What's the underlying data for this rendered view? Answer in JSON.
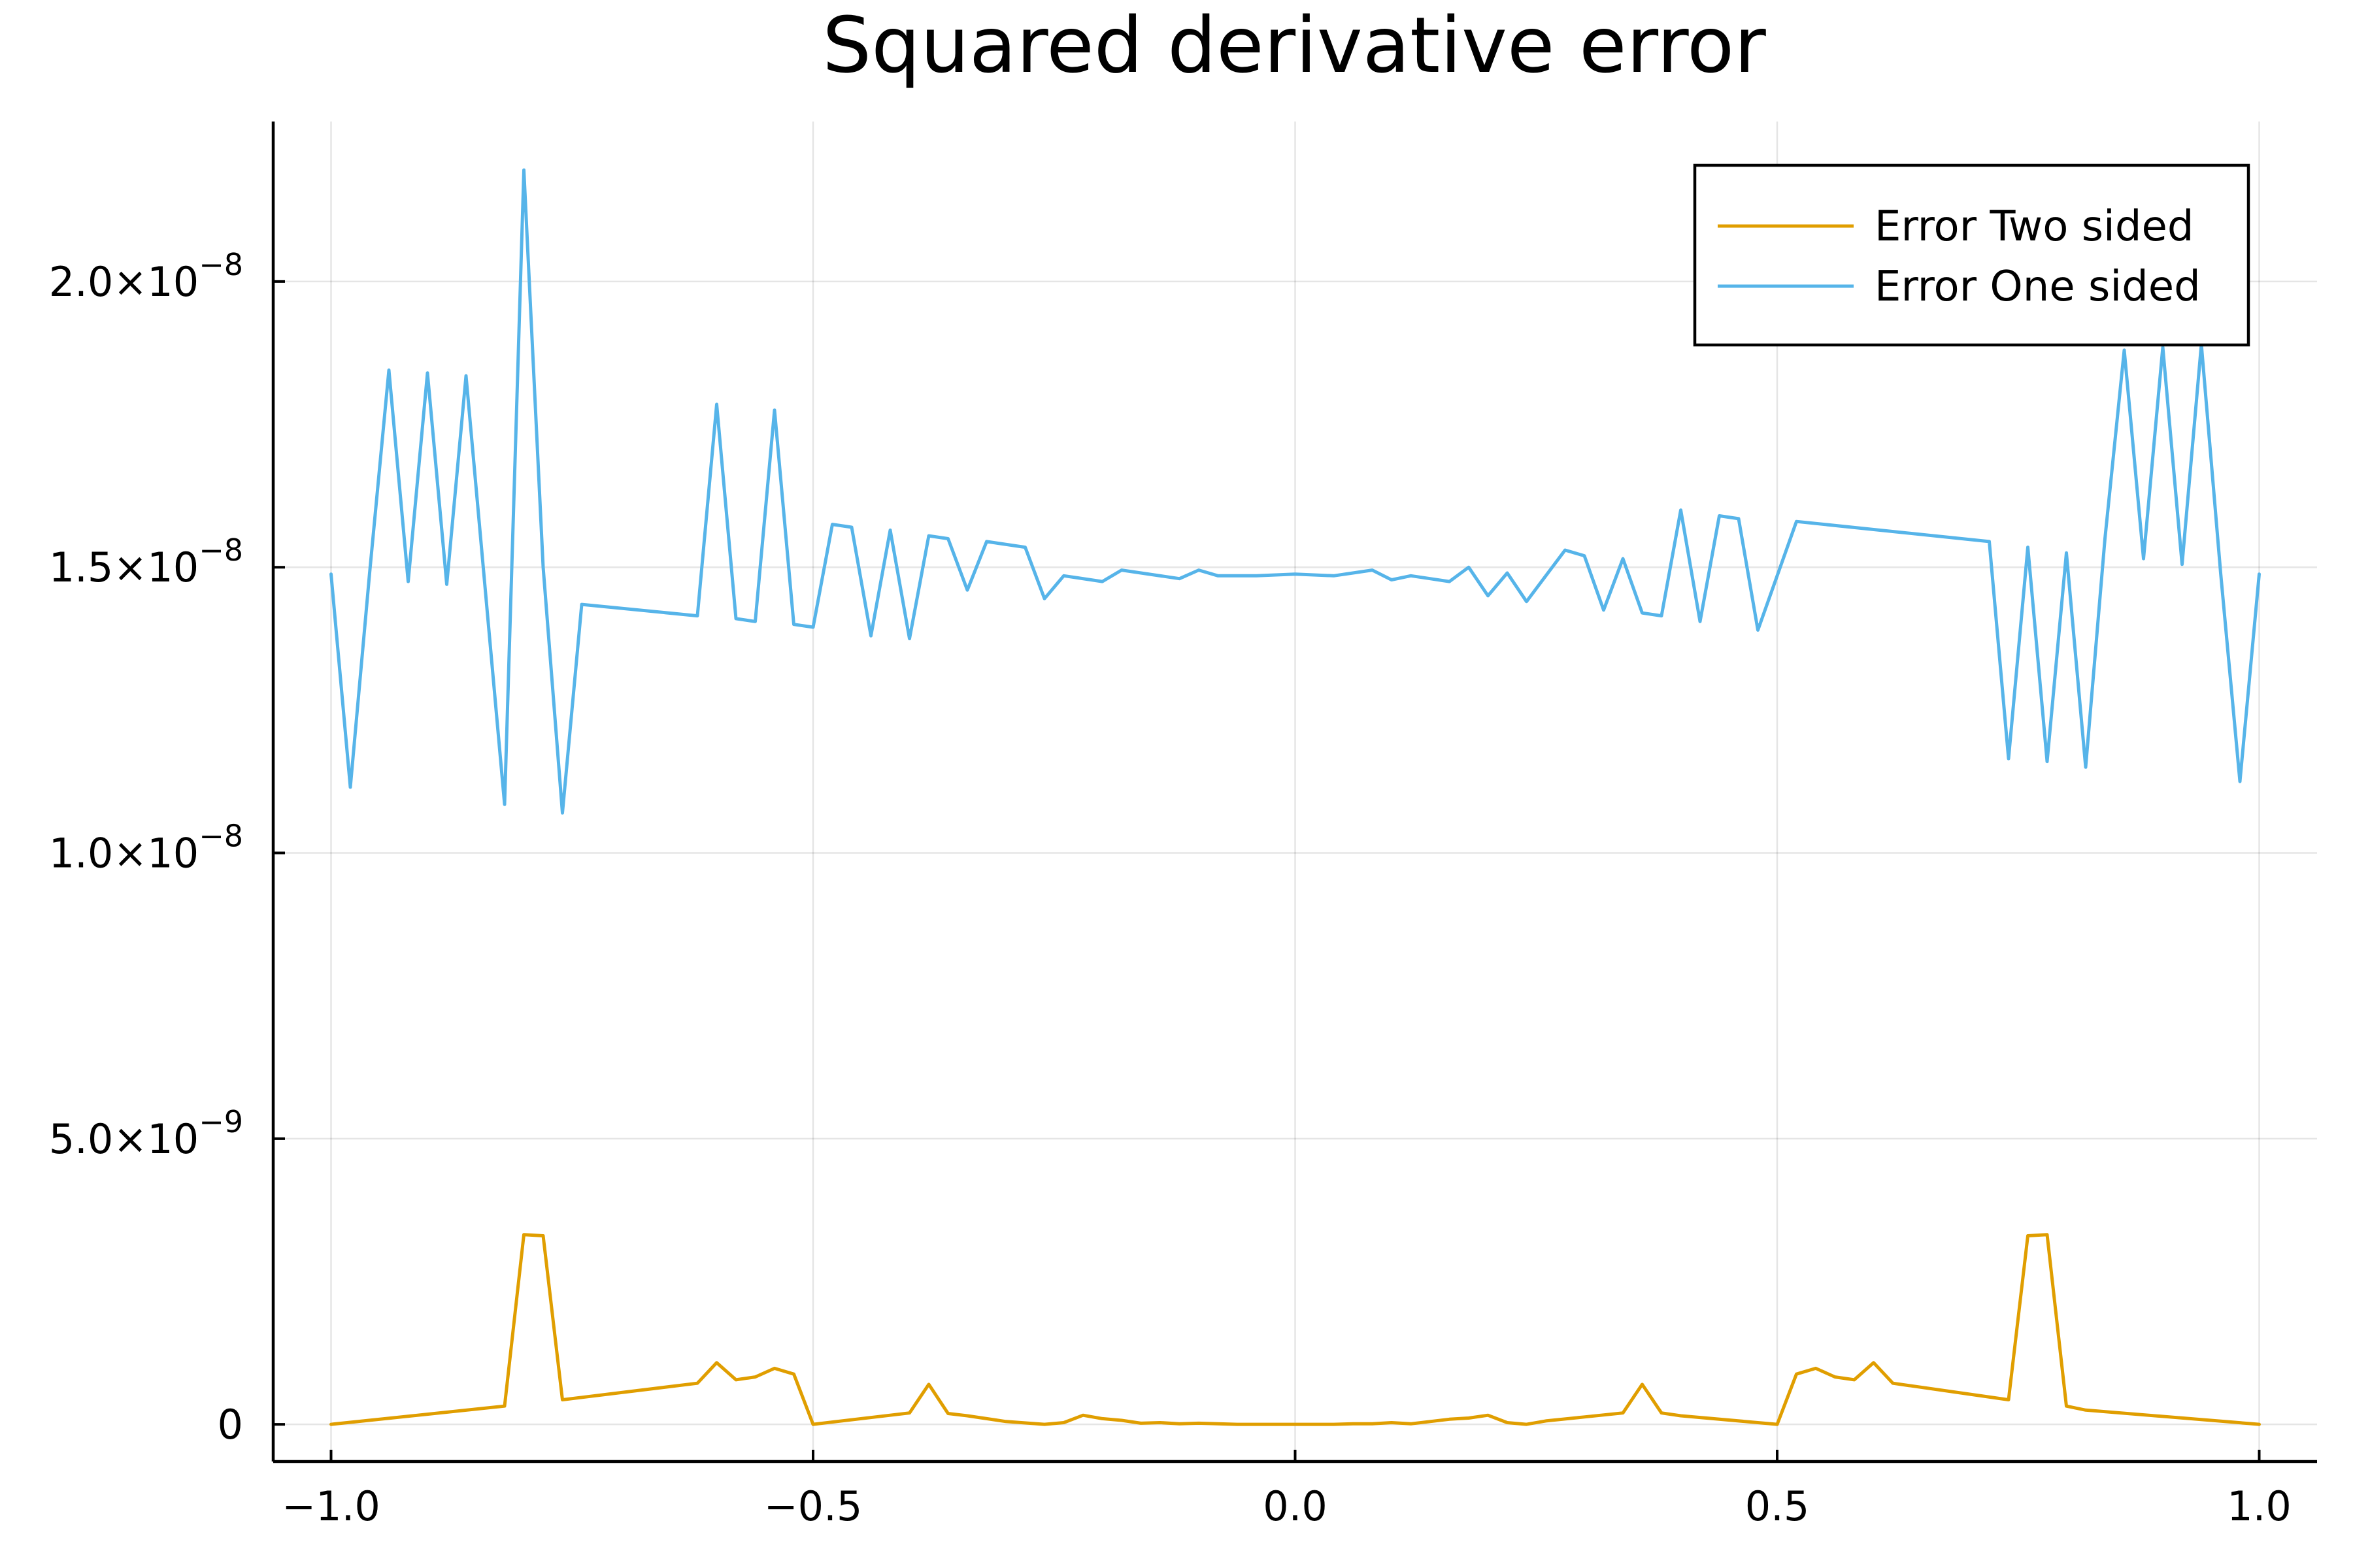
{
  "chart_data": {
    "type": "line",
    "title": "Squared derivative error",
    "xlabel": "",
    "ylabel": "",
    "xlim": [
      -1.06,
      1.06
    ],
    "ylim": [
      -6.5e-10,
      2.28e-08
    ],
    "grid": true,
    "legend_position": "top-right",
    "x_ticks": [
      {
        "value": -1.0,
        "label": "−1.0"
      },
      {
        "value": -0.5,
        "label": "−0.5"
      },
      {
        "value": 0.0,
        "label": "0.0"
      },
      {
        "value": 0.5,
        "label": "0.5"
      },
      {
        "value": 1.0,
        "label": "1.0"
      }
    ],
    "y_ticks": [
      {
        "value": 0,
        "mantissa": "0",
        "exponent": ""
      },
      {
        "value": 5e-09,
        "mantissa": "5.0×10",
        "exponent": "−9"
      },
      {
        "value": 1e-08,
        "mantissa": "1.0×10",
        "exponent": "−8"
      },
      {
        "value": 1.5e-08,
        "mantissa": "1.5×10",
        "exponent": "−8"
      },
      {
        "value": 2e-08,
        "mantissa": "2.0×10",
        "exponent": "−8"
      }
    ],
    "series": [
      {
        "name": "Error Two sided",
        "color": "#e09e00",
        "x": [
          -1.0,
          -0.82,
          -0.8,
          -0.78,
          -0.76,
          -0.62,
          -0.6,
          -0.58,
          -0.56,
          -0.54,
          -0.52,
          -0.5,
          -0.4,
          -0.38,
          -0.36,
          -0.34,
          -0.3,
          -0.26,
          -0.24,
          -0.22,
          -0.2,
          -0.18,
          -0.16,
          -0.14,
          -0.12,
          -0.1,
          -0.08,
          -0.06,
          -0.04,
          -0.02,
          0.0,
          0.02,
          0.04,
          0.06,
          0.08,
          0.1,
          0.12,
          0.14,
          0.16,
          0.18,
          0.2,
          0.22,
          0.24,
          0.26,
          0.3,
          0.34,
          0.36,
          0.38,
          0.4,
          0.5,
          0.52,
          0.54,
          0.56,
          0.58,
          0.6,
          0.62,
          0.74,
          0.76,
          0.78,
          0.8,
          0.82,
          1.0
        ],
        "y": [
          0,
          3.2e-10,
          3.32e-09,
          3.3e-09,
          4.3e-10,
          7.2e-10,
          1.08e-09,
          7.8e-10,
          8.3e-10,
          9.8e-10,
          8.8e-10,
          0,
          2e-10,
          7e-10,
          1.9e-10,
          1.5e-10,
          5e-11,
          0,
          3e-11,
          1.6e-10,
          1e-10,
          7e-11,
          2e-11,
          3e-11,
          1e-11,
          2e-11,
          1e-11,
          0,
          0,
          0,
          0,
          0,
          0,
          1e-11,
          1e-11,
          3e-11,
          1e-11,
          5e-11,
          9e-11,
          1.1e-10,
          1.6e-10,
          3e-11,
          0,
          6e-11,
          1.3e-10,
          2e-10,
          7e-10,
          2e-10,
          1.5e-10,
          0,
          8.8e-10,
          9.8e-10,
          8.3e-10,
          7.8e-10,
          1.08e-09,
          7.2e-10,
          4.3e-10,
          3.3e-09,
          3.32e-09,
          3.2e-10,
          2.5e-10,
          0
        ]
      },
      {
        "name": "Error One sided",
        "color": "#56b4e9",
        "x": [
          -1.0,
          -0.98,
          -0.96,
          -0.94,
          -0.92,
          -0.9,
          -0.88,
          -0.86,
          -0.82,
          -0.8,
          -0.78,
          -0.76,
          -0.74,
          -0.62,
          -0.6,
          -0.58,
          -0.56,
          -0.54,
          -0.52,
          -0.5,
          -0.48,
          -0.46,
          -0.44,
          -0.42,
          -0.4,
          -0.38,
          -0.36,
          -0.34,
          -0.32,
          -0.28,
          -0.26,
          -0.24,
          -0.2,
          -0.18,
          -0.12,
          -0.1,
          -0.08,
          -0.04,
          0.0,
          0.04,
          0.06,
          0.08,
          0.1,
          0.12,
          0.14,
          0.16,
          0.18,
          0.2,
          0.22,
          0.24,
          0.28,
          0.3,
          0.32,
          0.34,
          0.36,
          0.38,
          0.4,
          0.42,
          0.44,
          0.46,
          0.48,
          0.52,
          0.72,
          0.74,
          0.76,
          0.78,
          0.8,
          0.82,
          0.84,
          0.86,
          0.88,
          0.9,
          0.92,
          0.94,
          0.96,
          0.98,
          1.0
        ],
        "y": [
          1.488e-08,
          1.115e-08,
          1.49e-08,
          1.845e-08,
          1.475e-08,
          1.84e-08,
          1.47e-08,
          1.835e-08,
          1.085e-08,
          2.195e-08,
          1.5e-08,
          1.07e-08,
          1.435e-08,
          1.415e-08,
          1.785e-08,
          1.41e-08,
          1.405e-08,
          1.775e-08,
          1.4e-08,
          1.395e-08,
          1.575e-08,
          1.57e-08,
          1.38e-08,
          1.565e-08,
          1.375e-08,
          1.555e-08,
          1.55e-08,
          1.46e-08,
          1.545e-08,
          1.535e-08,
          1.445e-08,
          1.485e-08,
          1.475e-08,
          1.495e-08,
          1.48e-08,
          1.495e-08,
          1.485e-08,
          1.485e-08,
          1.488e-08,
          1.485e-08,
          1.49e-08,
          1.495e-08,
          1.478e-08,
          1.485e-08,
          1.48e-08,
          1.475e-08,
          1.5e-08,
          1.45e-08,
          1.49e-08,
          1.44e-08,
          1.53e-08,
          1.52e-08,
          1.425e-08,
          1.515e-08,
          1.42e-08,
          1.415e-08,
          1.6e-08,
          1.405e-08,
          1.59e-08,
          1.585e-08,
          1.39e-08,
          1.58e-08,
          1.545e-08,
          1.165e-08,
          1.535e-08,
          1.16e-08,
          1.525e-08,
          1.15e-08,
          1.55e-08,
          1.88e-08,
          1.515e-08,
          1.885e-08,
          1.505e-08,
          1.89e-08,
          1.49e-08,
          1.125e-08,
          1.488e-08
        ]
      }
    ]
  }
}
